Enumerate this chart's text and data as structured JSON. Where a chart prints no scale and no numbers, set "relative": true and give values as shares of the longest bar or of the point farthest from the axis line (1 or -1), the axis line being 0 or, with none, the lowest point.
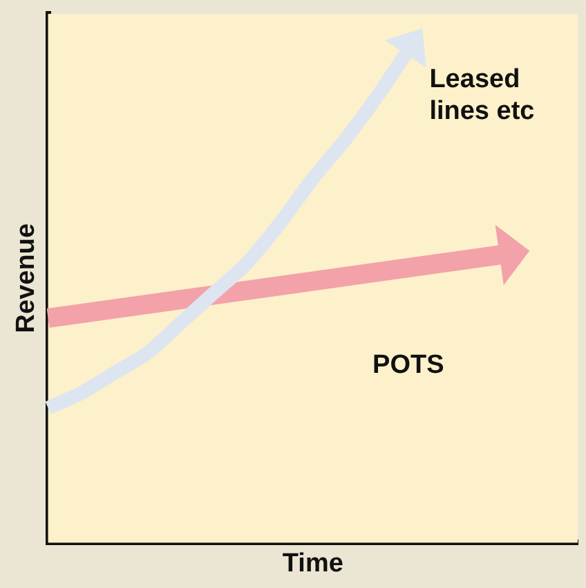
{
  "chart_data": {
    "type": "line",
    "xlabel": "Time",
    "ylabel": "Revenue",
    "relative": true,
    "categories": [
      null,
      null,
      null,
      null,
      null,
      null,
      null,
      null,
      null,
      null,
      null,
      null,
      null,
      null,
      null,
      null,
      null
    ],
    "series": [
      {
        "name": "Leased lines etc",
        "color": "#dce5f0",
        "values": [
          0.27,
          0.3,
          0.34,
          0.38,
          0.44,
          0.5,
          0.56,
          0.64,
          0.73,
          0.81,
          0.9,
          1,
          null,
          null,
          null,
          null,
          null
        ]
      },
      {
        "name": "POTS",
        "color": "#f2a2a8",
        "values": [
          0.45,
          null,
          null,
          null,
          null,
          null,
          null,
          null,
          null,
          null,
          null,
          null,
          null,
          null,
          0.58,
          null,
          null
        ]
      }
    ]
  }
}
